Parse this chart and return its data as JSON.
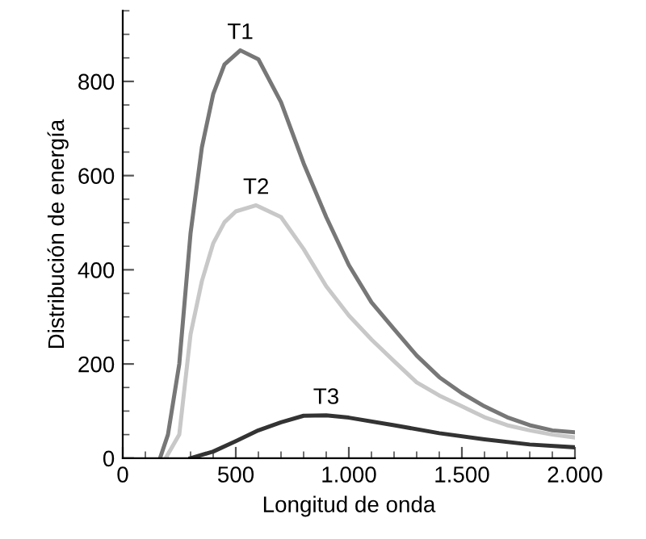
{
  "chart_data": {
    "type": "line",
    "xlabel": "Longitud de onda",
    "ylabel": "Distribución de energía",
    "xlim": [
      0,
      2000
    ],
    "ylim": [
      0,
      950
    ],
    "xticks": [
      0,
      500,
      {
        "value": 1000,
        "label": "1.000"
      },
      {
        "value": 1500,
        "label": "1.500"
      },
      {
        "value": 2000,
        "label": "2.000"
      }
    ],
    "yticks": [
      0,
      200,
      400,
      600,
      800
    ],
    "grid": false,
    "legend": false,
    "marker": "none",
    "line_style": "solid",
    "series": [
      {
        "name": "T1",
        "color": "#777777",
        "x": [
          165,
          200,
          250,
          300,
          350,
          400,
          450,
          520,
          600,
          700,
          800,
          900,
          1000,
          1100,
          1200,
          1300,
          1400,
          1500,
          1600,
          1700,
          1800,
          1900,
          2000
        ],
        "values": [
          0,
          50,
          200,
          478,
          660,
          773,
          836,
          866,
          847,
          756,
          626,
          512,
          410,
          331,
          274,
          218,
          172,
          138,
          110,
          87,
          70,
          59,
          55
        ]
      },
      {
        "name": "T2",
        "color": "#c8c8c8",
        "x": [
          190,
          250,
          300,
          350,
          400,
          450,
          500,
          590,
          700,
          800,
          900,
          1000,
          1100,
          1200,
          1300,
          1400,
          1500,
          1600,
          1700,
          1800,
          1900,
          2000
        ],
        "values": [
          0,
          50,
          263,
          376,
          456,
          501,
          524,
          537,
          512,
          444,
          365,
          303,
          252,
          206,
          161,
          133,
          110,
          87,
          70,
          59,
          50,
          44
        ]
      },
      {
        "name": "T3",
        "color": "#333333",
        "x": [
          300,
          400,
          500,
          600,
          700,
          800,
          900,
          1000,
          1200,
          1400,
          1600,
          1800,
          2000
        ],
        "values": [
          0,
          14,
          36,
          59,
          76,
          90,
          91,
          86,
          70,
          53,
          40,
          29,
          23
        ]
      }
    ]
  }
}
